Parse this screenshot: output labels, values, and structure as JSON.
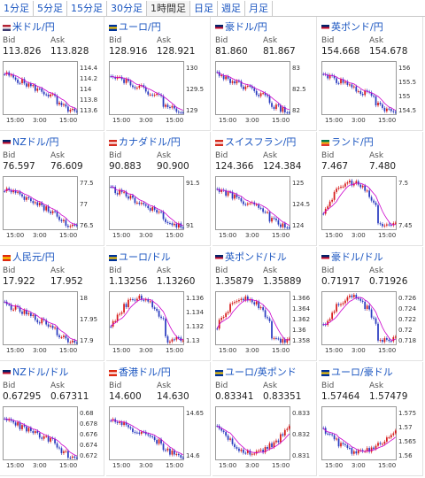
{
  "tabs": [
    "1分足",
    "5分足",
    "15分足",
    "30分足",
    "1時間足",
    "日足",
    "週足",
    "月足"
  ],
  "active_tab": 4,
  "common": {
    "bid": "Bid",
    "ask": "Ask"
  },
  "pairs": [
    {
      "name": "米ドル/円",
      "flag": "us",
      "bid": "113.826",
      "ask": "113.828",
      "yticks": [
        "114.4",
        "114.2",
        "114",
        "113.8",
        "113.6"
      ],
      "x": [
        "15:00",
        "3:00",
        "15:00"
      ],
      "trend": "down"
    },
    {
      "name": "ユーロ/円",
      "flag": "eu",
      "bid": "128.916",
      "ask": "128.921",
      "yticks": [
        "130",
        "129.5",
        "129"
      ],
      "x": [
        "15:00",
        "3:00",
        "15:00"
      ],
      "trend": "down"
    },
    {
      "name": "豪ドル/円",
      "flag": "au",
      "bid": "81.860",
      "ask": "81.867",
      "yticks": [
        "83",
        "82.5",
        "82"
      ],
      "x": [
        "15:00",
        "3:00",
        "15:00"
      ],
      "trend": "down"
    },
    {
      "name": "英ポンド/円",
      "flag": "gb",
      "bid": "154.668",
      "ask": "154.678",
      "yticks": [
        "156",
        "155.5",
        "155",
        "154.5"
      ],
      "x": [
        "15:00",
        "3:00",
        "15:00"
      ],
      "trend": "down"
    },
    {
      "name": "NZドル/円",
      "flag": "nz",
      "bid": "76.597",
      "ask": "76.609",
      "yticks": [
        "77.5",
        "77",
        "76.5"
      ],
      "x": [
        "15:00",
        "3:00",
        "15:00"
      ],
      "trend": "down"
    },
    {
      "name": "カナダドル/円",
      "flag": "ca",
      "bid": "90.883",
      "ask": "90.900",
      "yticks": [
        "91.5",
        "91"
      ],
      "x": [
        "15:00",
        "3:00",
        "15:00"
      ],
      "trend": "down"
    },
    {
      "name": "スイスフラン/円",
      "flag": "ch",
      "bid": "124.366",
      "ask": "124.384",
      "yticks": [
        "125",
        "124.5",
        "124"
      ],
      "x": [
        "15:00",
        "3:00",
        "15:00"
      ],
      "trend": "down"
    },
    {
      "name": "ランド/円",
      "flag": "za",
      "bid": "7.467",
      "ask": "7.480",
      "yticks": [
        "7.5",
        "7.45"
      ],
      "x": [
        "15:00",
        "3:00",
        "15:00"
      ],
      "trend": "hump"
    },
    {
      "name": "人民元/円",
      "flag": "cn",
      "bid": "17.922",
      "ask": "17.952",
      "yticks": [
        "18",
        "17.95",
        "17.9"
      ],
      "x": [
        "15:00",
        "3:00",
        "15:00"
      ],
      "trend": "down"
    },
    {
      "name": "ユーロ/ドル",
      "flag": "eu",
      "bid": "1.13256",
      "ask": "1.13260",
      "yticks": [
        "1.136",
        "1.134",
        "1.132",
        "1.13"
      ],
      "x": [
        "15:00",
        "3:00",
        "15:00"
      ],
      "trend": "hump"
    },
    {
      "name": "英ポンド/ドル",
      "flag": "gb",
      "bid": "1.35879",
      "ask": "1.35889",
      "yticks": [
        "1.366",
        "1.364",
        "1.362",
        "1.36",
        "1.358"
      ],
      "x": [
        "15:00",
        "3:00",
        "15:00"
      ],
      "trend": "hump"
    },
    {
      "name": "豪ドル/ドル",
      "flag": "au",
      "bid": "0.71917",
      "ask": "0.71926",
      "yticks": [
        "0.726",
        "0.724",
        "0.722",
        "0.72",
        "0.718"
      ],
      "x": [
        "15:00",
        "3:00",
        "15:00"
      ],
      "trend": "hump"
    },
    {
      "name": "NZドル/ドル",
      "flag": "nz",
      "bid": "0.67295",
      "ask": "0.67311",
      "yticks": [
        "0.68",
        "0.678",
        "0.676",
        "0.674",
        "0.672"
      ],
      "x": [
        "15:00",
        "3:00",
        "15:00"
      ],
      "trend": "down"
    },
    {
      "name": "香港ドル/円",
      "flag": "hk",
      "bid": "14.600",
      "ask": "14.630",
      "yticks": [
        "14.65",
        "14.6"
      ],
      "x": [
        "15:00",
        "3:00",
        "15:00"
      ],
      "trend": "down"
    },
    {
      "name": "ユーロ/英ポンド",
      "flag": "eu",
      "bid": "0.83341",
      "ask": "0.83351",
      "yticks": [
        "0.833",
        "0.832",
        "0.831"
      ],
      "x": [
        "15:00",
        "3:00",
        "15:00"
      ],
      "trend": "dip"
    },
    {
      "name": "ユーロ/豪ドル",
      "flag": "eu",
      "bid": "1.57464",
      "ask": "1.57479",
      "yticks": [
        "1.575",
        "1.57",
        "1.565",
        "1.56"
      ],
      "x": [
        "15:00",
        "3:00",
        "15:00"
      ],
      "trend": "dip"
    }
  ],
  "colors": {
    "link": "#1a55c0",
    "up": "#d61a1a",
    "down": "#2a3bbf",
    "ma": "#cc00cc",
    "ma2": "#3377cc"
  }
}
